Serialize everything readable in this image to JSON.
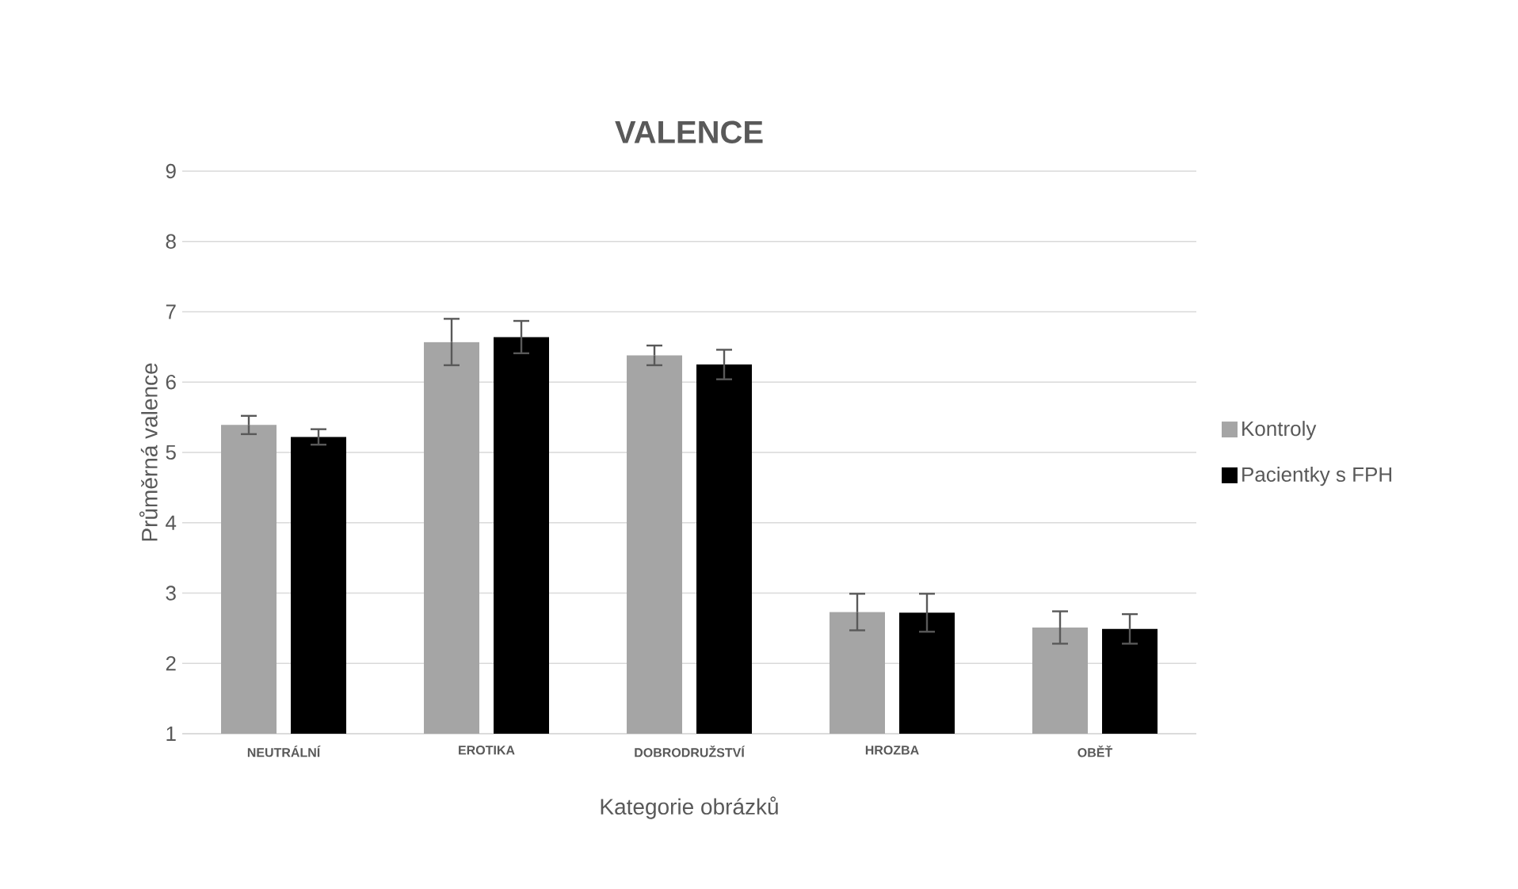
{
  "chart_data": {
    "type": "bar",
    "title": "VALENCE",
    "xlabel": "Kategorie obrázků",
    "ylabel": "Průměrná valence",
    "categories": [
      "NEUTRÁLNÍ",
      "EROTIKA",
      "DOBRODRUŽSTVÍ",
      "HROZBA",
      "OBĚŤ"
    ],
    "series": [
      {
        "name": "Kontroly",
        "color": "#a5a5a5",
        "values": [
          5.39,
          6.57,
          6.38,
          2.73,
          2.51
        ],
        "errors": [
          0.13,
          0.33,
          0.14,
          0.26,
          0.23
        ]
      },
      {
        "name": "Pacientky s FPH",
        "color": "#000000",
        "values": [
          5.22,
          6.64,
          6.25,
          2.72,
          2.49
        ],
        "errors": [
          0.11,
          0.23,
          0.21,
          0.27,
          0.21
        ]
      }
    ],
    "ylim": [
      1,
      9
    ],
    "yticks": [
      1,
      2,
      3,
      4,
      5,
      6,
      7,
      8,
      9
    ],
    "grid": "y",
    "legend": "right"
  }
}
